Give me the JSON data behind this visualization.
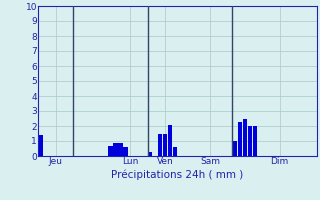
{
  "title": "",
  "xlabel": "Précipitations 24h ( mm )",
  "ylabel": "",
  "background_color": "#daf0f0",
  "bar_color": "#0000dd",
  "grid_color": "#a8c8c8",
  "axis_color": "#2222aa",
  "tick_color": "#2222aa",
  "ylim": [
    0,
    10
  ],
  "yticks": [
    0,
    1,
    2,
    3,
    4,
    5,
    6,
    7,
    8,
    9,
    10
  ],
  "n_bars": 56,
  "values": [
    1.4,
    0,
    0,
    0,
    0,
    0,
    0,
    0,
    0,
    0,
    0,
    0,
    0,
    0,
    0.65,
    0.9,
    0.9,
    0.6,
    0,
    0,
    0,
    0,
    0.3,
    0,
    1.5,
    1.5,
    2.1,
    0.6,
    0,
    0,
    0,
    0,
    0,
    0,
    0,
    0,
    0,
    0,
    0,
    1.0,
    2.3,
    2.5,
    2.0,
    2.0,
    0,
    0,
    0,
    0,
    0,
    0,
    0,
    0,
    0,
    0,
    0,
    0
  ],
  "vline_positions": [
    6.5,
    21.5,
    38.5
  ],
  "day_labels": [
    "Jeu",
    "Lun",
    "Ven",
    "Sam",
    "Dim"
  ],
  "day_tick_positions": [
    3,
    18,
    25,
    34,
    48
  ]
}
